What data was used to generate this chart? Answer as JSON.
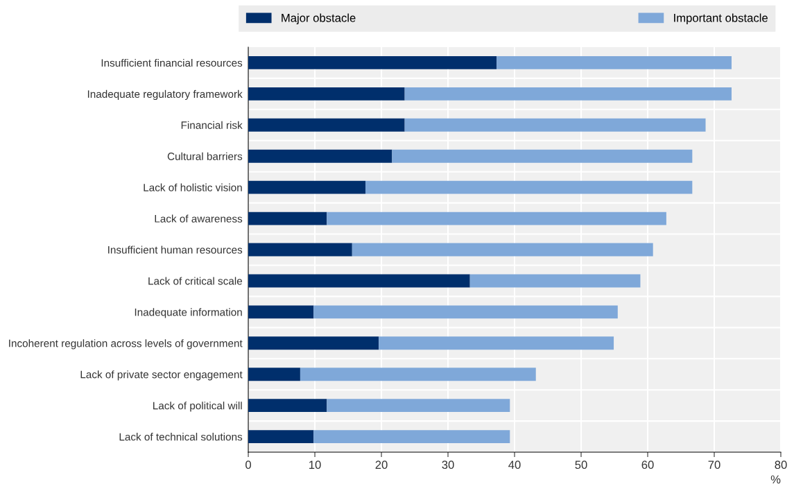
{
  "chart_data": {
    "type": "bar",
    "orientation": "horizontal",
    "stacked": true,
    "categories": [
      "Insufficient financial resources",
      "Inadequate regulatory framework",
      "Financial risk",
      "Cultural barriers",
      "Lack of holistic vision",
      "Lack of awareness",
      "Insufficient human resources",
      "Lack of critical scale",
      "Inadequate information",
      "Incoherent regulation across levels of government",
      "Lack of private sector engagement",
      "Lack of political will",
      "Lack of technical solutions"
    ],
    "series": [
      {
        "name": "Major obstacle",
        "color": "#002f6c",
        "values": [
          37.3,
          23.5,
          23.5,
          21.6,
          17.6,
          11.8,
          15.6,
          33.3,
          9.8,
          19.6,
          7.8,
          11.8,
          9.8
        ]
      },
      {
        "name": "Important obstacle",
        "color": "#7fa8d9",
        "values": [
          35.3,
          49.1,
          45.2,
          45.1,
          49.1,
          51.0,
          45.2,
          25.6,
          45.7,
          35.3,
          35.4,
          27.5,
          29.5
        ]
      }
    ],
    "xlabel": "%",
    "xlim": [
      0,
      80
    ],
    "xticks": [
      0,
      10,
      20,
      30,
      40,
      50,
      60,
      70,
      80
    ],
    "grid": "x",
    "legend": "top"
  }
}
